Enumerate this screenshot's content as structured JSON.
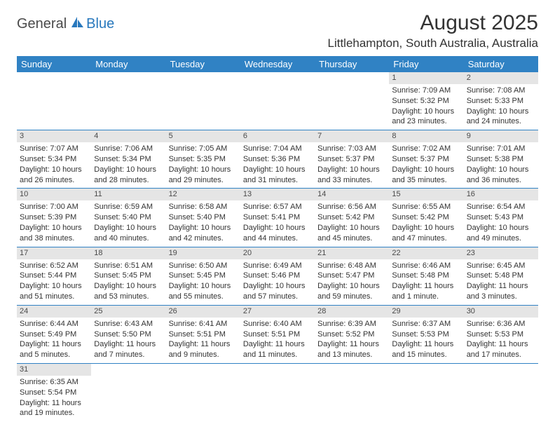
{
  "logo": {
    "general": "General",
    "blue": "Blue"
  },
  "header": {
    "month_title": "August 2025",
    "location": "Littlehampton, South Australia, Australia"
  },
  "styling": {
    "header_bg": "#3082c4",
    "header_fg": "#ffffff",
    "daynum_bg": "#e5e5e5",
    "daynum_fg": "#4a4a4a",
    "row_divider": "#3082c4",
    "body_bg": "#ffffff",
    "text_color": "#333333",
    "logo_blue": "#2878bd",
    "font_family": "Arial",
    "month_title_fontsize": 30,
    "location_fontsize": 17,
    "header_fontsize": 13,
    "cell_fontsize": 11,
    "columns": 7,
    "rows": 6
  },
  "day_headers": [
    "Sunday",
    "Monday",
    "Tuesday",
    "Wednesday",
    "Thursday",
    "Friday",
    "Saturday"
  ],
  "weeks": [
    [
      {
        "n": "",
        "sr": "",
        "ss": "",
        "dl": ""
      },
      {
        "n": "",
        "sr": "",
        "ss": "",
        "dl": ""
      },
      {
        "n": "",
        "sr": "",
        "ss": "",
        "dl": ""
      },
      {
        "n": "",
        "sr": "",
        "ss": "",
        "dl": ""
      },
      {
        "n": "",
        "sr": "",
        "ss": "",
        "dl": ""
      },
      {
        "n": "1",
        "sr": "Sunrise: 7:09 AM",
        "ss": "Sunset: 5:32 PM",
        "dl": "Daylight: 10 hours and 23 minutes."
      },
      {
        "n": "2",
        "sr": "Sunrise: 7:08 AM",
        "ss": "Sunset: 5:33 PM",
        "dl": "Daylight: 10 hours and 24 minutes."
      }
    ],
    [
      {
        "n": "3",
        "sr": "Sunrise: 7:07 AM",
        "ss": "Sunset: 5:34 PM",
        "dl": "Daylight: 10 hours and 26 minutes."
      },
      {
        "n": "4",
        "sr": "Sunrise: 7:06 AM",
        "ss": "Sunset: 5:34 PM",
        "dl": "Daylight: 10 hours and 28 minutes."
      },
      {
        "n": "5",
        "sr": "Sunrise: 7:05 AM",
        "ss": "Sunset: 5:35 PM",
        "dl": "Daylight: 10 hours and 29 minutes."
      },
      {
        "n": "6",
        "sr": "Sunrise: 7:04 AM",
        "ss": "Sunset: 5:36 PM",
        "dl": "Daylight: 10 hours and 31 minutes."
      },
      {
        "n": "7",
        "sr": "Sunrise: 7:03 AM",
        "ss": "Sunset: 5:37 PM",
        "dl": "Daylight: 10 hours and 33 minutes."
      },
      {
        "n": "8",
        "sr": "Sunrise: 7:02 AM",
        "ss": "Sunset: 5:37 PM",
        "dl": "Daylight: 10 hours and 35 minutes."
      },
      {
        "n": "9",
        "sr": "Sunrise: 7:01 AM",
        "ss": "Sunset: 5:38 PM",
        "dl": "Daylight: 10 hours and 36 minutes."
      }
    ],
    [
      {
        "n": "10",
        "sr": "Sunrise: 7:00 AM",
        "ss": "Sunset: 5:39 PM",
        "dl": "Daylight: 10 hours and 38 minutes."
      },
      {
        "n": "11",
        "sr": "Sunrise: 6:59 AM",
        "ss": "Sunset: 5:40 PM",
        "dl": "Daylight: 10 hours and 40 minutes."
      },
      {
        "n": "12",
        "sr": "Sunrise: 6:58 AM",
        "ss": "Sunset: 5:40 PM",
        "dl": "Daylight: 10 hours and 42 minutes."
      },
      {
        "n": "13",
        "sr": "Sunrise: 6:57 AM",
        "ss": "Sunset: 5:41 PM",
        "dl": "Daylight: 10 hours and 44 minutes."
      },
      {
        "n": "14",
        "sr": "Sunrise: 6:56 AM",
        "ss": "Sunset: 5:42 PM",
        "dl": "Daylight: 10 hours and 45 minutes."
      },
      {
        "n": "15",
        "sr": "Sunrise: 6:55 AM",
        "ss": "Sunset: 5:42 PM",
        "dl": "Daylight: 10 hours and 47 minutes."
      },
      {
        "n": "16",
        "sr": "Sunrise: 6:54 AM",
        "ss": "Sunset: 5:43 PM",
        "dl": "Daylight: 10 hours and 49 minutes."
      }
    ],
    [
      {
        "n": "17",
        "sr": "Sunrise: 6:52 AM",
        "ss": "Sunset: 5:44 PM",
        "dl": "Daylight: 10 hours and 51 minutes."
      },
      {
        "n": "18",
        "sr": "Sunrise: 6:51 AM",
        "ss": "Sunset: 5:45 PM",
        "dl": "Daylight: 10 hours and 53 minutes."
      },
      {
        "n": "19",
        "sr": "Sunrise: 6:50 AM",
        "ss": "Sunset: 5:45 PM",
        "dl": "Daylight: 10 hours and 55 minutes."
      },
      {
        "n": "20",
        "sr": "Sunrise: 6:49 AM",
        "ss": "Sunset: 5:46 PM",
        "dl": "Daylight: 10 hours and 57 minutes."
      },
      {
        "n": "21",
        "sr": "Sunrise: 6:48 AM",
        "ss": "Sunset: 5:47 PM",
        "dl": "Daylight: 10 hours and 59 minutes."
      },
      {
        "n": "22",
        "sr": "Sunrise: 6:46 AM",
        "ss": "Sunset: 5:48 PM",
        "dl": "Daylight: 11 hours and 1 minute."
      },
      {
        "n": "23",
        "sr": "Sunrise: 6:45 AM",
        "ss": "Sunset: 5:48 PM",
        "dl": "Daylight: 11 hours and 3 minutes."
      }
    ],
    [
      {
        "n": "24",
        "sr": "Sunrise: 6:44 AM",
        "ss": "Sunset: 5:49 PM",
        "dl": "Daylight: 11 hours and 5 minutes."
      },
      {
        "n": "25",
        "sr": "Sunrise: 6:43 AM",
        "ss": "Sunset: 5:50 PM",
        "dl": "Daylight: 11 hours and 7 minutes."
      },
      {
        "n": "26",
        "sr": "Sunrise: 6:41 AM",
        "ss": "Sunset: 5:51 PM",
        "dl": "Daylight: 11 hours and 9 minutes."
      },
      {
        "n": "27",
        "sr": "Sunrise: 6:40 AM",
        "ss": "Sunset: 5:51 PM",
        "dl": "Daylight: 11 hours and 11 minutes."
      },
      {
        "n": "28",
        "sr": "Sunrise: 6:39 AM",
        "ss": "Sunset: 5:52 PM",
        "dl": "Daylight: 11 hours and 13 minutes."
      },
      {
        "n": "29",
        "sr": "Sunrise: 6:37 AM",
        "ss": "Sunset: 5:53 PM",
        "dl": "Daylight: 11 hours and 15 minutes."
      },
      {
        "n": "30",
        "sr": "Sunrise: 6:36 AM",
        "ss": "Sunset: 5:53 PM",
        "dl": "Daylight: 11 hours and 17 minutes."
      }
    ],
    [
      {
        "n": "31",
        "sr": "Sunrise: 6:35 AM",
        "ss": "Sunset: 5:54 PM",
        "dl": "Daylight: 11 hours and 19 minutes."
      },
      {
        "n": "",
        "sr": "",
        "ss": "",
        "dl": ""
      },
      {
        "n": "",
        "sr": "",
        "ss": "",
        "dl": ""
      },
      {
        "n": "",
        "sr": "",
        "ss": "",
        "dl": ""
      },
      {
        "n": "",
        "sr": "",
        "ss": "",
        "dl": ""
      },
      {
        "n": "",
        "sr": "",
        "ss": "",
        "dl": ""
      },
      {
        "n": "",
        "sr": "",
        "ss": "",
        "dl": ""
      }
    ]
  ]
}
